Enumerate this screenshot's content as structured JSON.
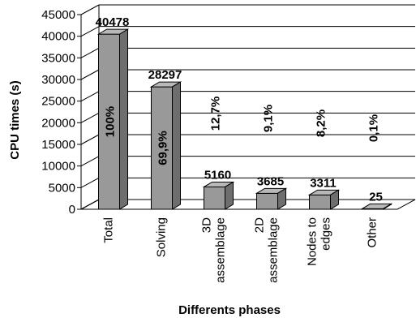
{
  "chart_data": {
    "type": "bar",
    "style": "3d",
    "title": "",
    "xlabel": "Differents phases",
    "ylabel": "CPU times (s)",
    "ylim": [
      0,
      45000
    ],
    "yticks": [
      "0",
      "5000",
      "10000",
      "15000",
      "20000",
      "25000",
      "30000",
      "35000",
      "40000",
      "45000"
    ],
    "grid": true,
    "legend": "none",
    "bar_color": "#999999",
    "categories": [
      [
        "Total"
      ],
      [
        "Solving"
      ],
      [
        "3D",
        "assemblage"
      ],
      [
        "2D",
        "assemblage"
      ],
      [
        "Nodes to",
        "edges"
      ],
      [
        "Other"
      ]
    ],
    "values": [
      40478,
      28297,
      5160,
      3685,
      3311,
      25
    ],
    "value_labels": [
      "40478",
      "28297",
      "5160",
      "3685",
      "3311",
      "25"
    ],
    "percent_labels": [
      "100%",
      "69,9%",
      "12,7%",
      "9,1%",
      "8,2%",
      "0,1%"
    ]
  }
}
